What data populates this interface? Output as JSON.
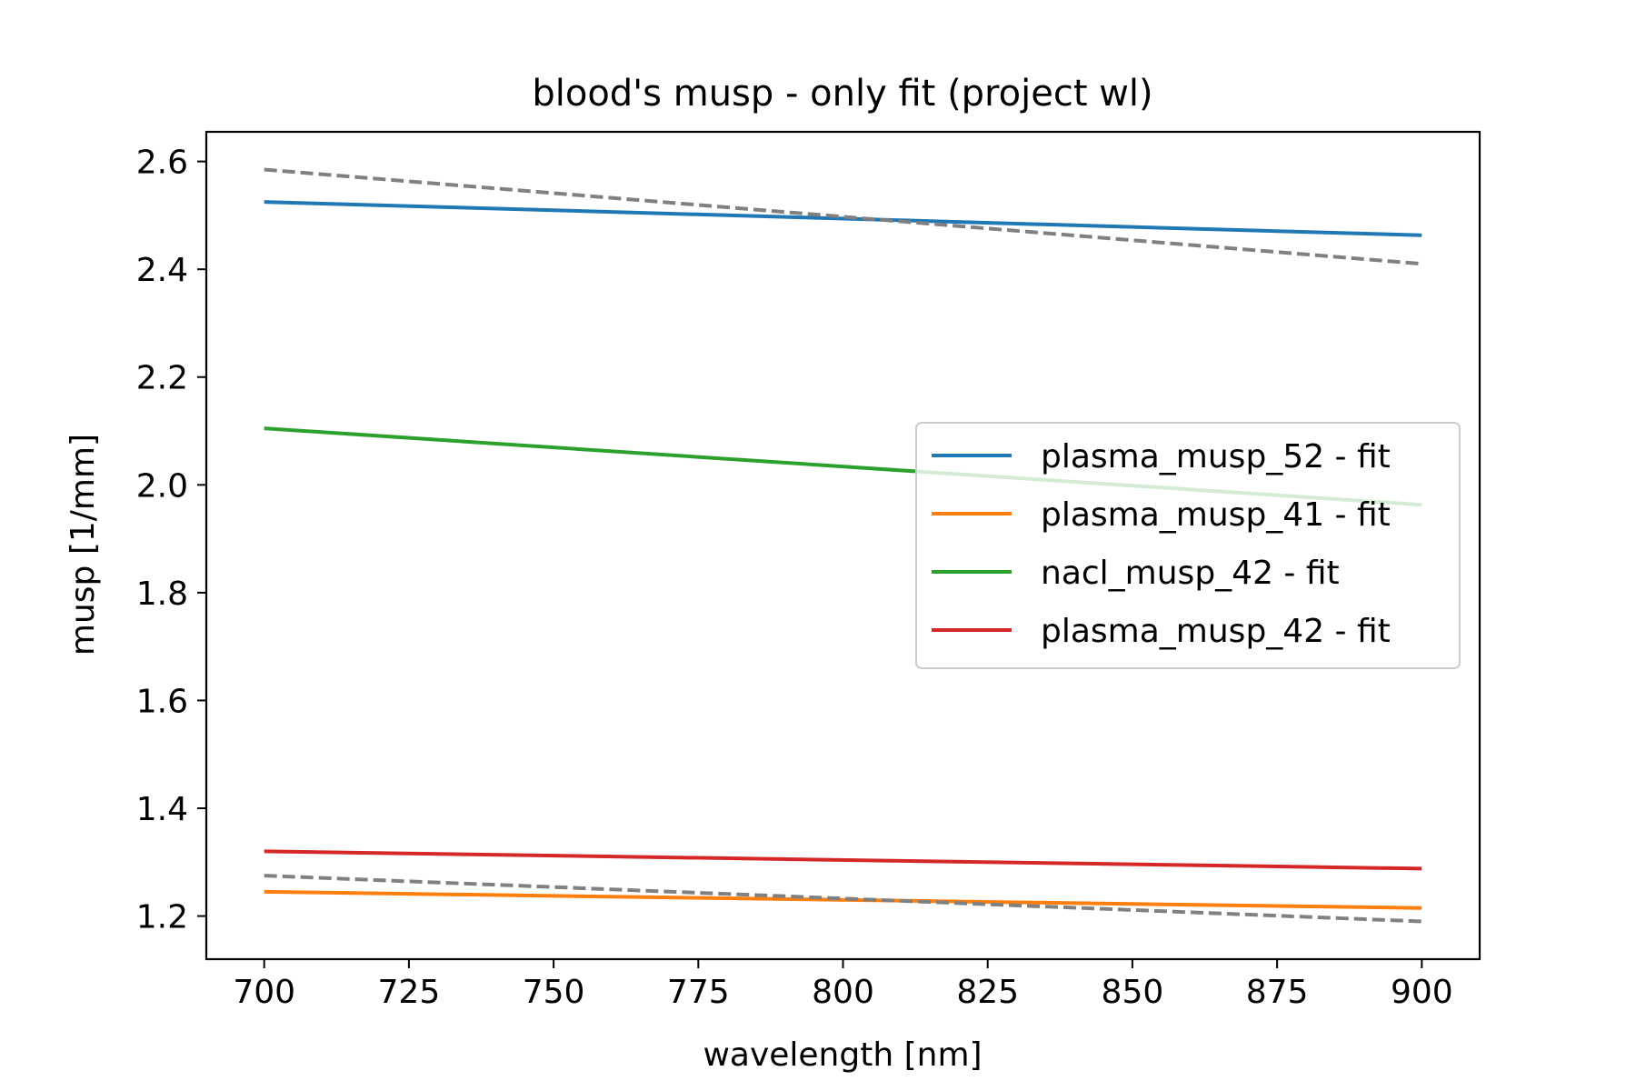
{
  "chart_data": {
    "type": "line",
    "title": "blood's musp - only fit (project wl)",
    "xlabel": "wavelength [nm]",
    "ylabel": "musp [1/mm]",
    "xlim": [
      690,
      910
    ],
    "ylim": [
      1.12,
      2.655
    ],
    "xticks": [
      700,
      725,
      750,
      775,
      800,
      825,
      850,
      875,
      900
    ],
    "yticks": [
      1.2,
      1.4,
      1.6,
      1.8,
      2.0,
      2.2,
      2.4,
      2.6
    ],
    "ytick_labels": [
      "1.2",
      "1.4",
      "1.6",
      "1.8",
      "2.0",
      "2.2",
      "2.4",
      "2.6"
    ],
    "grid": false,
    "legend_position": "center-right",
    "series": [
      {
        "name": "plasma_musp_52 - fit",
        "color": "#1f77b4",
        "style": "solid",
        "x": [
          700,
          900
        ],
        "y": [
          2.525,
          2.463
        ]
      },
      {
        "name": "plasma_musp_41 - fit",
        "color": "#ff7f0e",
        "style": "solid",
        "x": [
          700,
          900
        ],
        "y": [
          1.245,
          1.215
        ]
      },
      {
        "name": "nacl_musp_42 - fit",
        "color": "#2ca02c",
        "style": "solid",
        "x": [
          700,
          900
        ],
        "y": [
          2.105,
          1.963
        ]
      },
      {
        "name": "plasma_musp_42 - fit",
        "color": "#d62728",
        "style": "solid",
        "x": [
          700,
          900
        ],
        "y": [
          1.32,
          1.288
        ]
      },
      {
        "color": "#808080",
        "style": "dashed",
        "x": [
          700,
          900
        ],
        "y": [
          2.585,
          2.41
        ]
      },
      {
        "color": "#808080",
        "style": "dashed",
        "x": [
          700,
          900
        ],
        "y": [
          1.275,
          1.19
        ]
      }
    ]
  }
}
